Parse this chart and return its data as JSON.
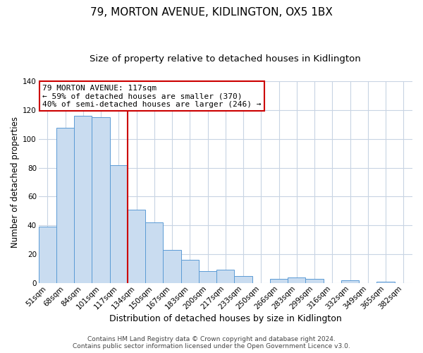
{
  "title": "79, MORTON AVENUE, KIDLINGTON, OX5 1BX",
  "subtitle": "Size of property relative to detached houses in Kidlington",
  "xlabel": "Distribution of detached houses by size in Kidlington",
  "ylabel": "Number of detached properties",
  "bar_labels": [
    "51sqm",
    "68sqm",
    "84sqm",
    "101sqm",
    "117sqm",
    "134sqm",
    "150sqm",
    "167sqm",
    "183sqm",
    "200sqm",
    "217sqm",
    "233sqm",
    "250sqm",
    "266sqm",
    "283sqm",
    "299sqm",
    "316sqm",
    "332sqm",
    "349sqm",
    "365sqm",
    "382sqm"
  ],
  "bar_values": [
    39,
    108,
    116,
    115,
    82,
    51,
    42,
    23,
    16,
    8,
    9,
    5,
    0,
    3,
    4,
    3,
    0,
    2,
    0,
    1,
    0
  ],
  "bar_color": "#c9dcf0",
  "bar_edge_color": "#5b9bd5",
  "vline_after_index": 4,
  "vline_color": "#cc0000",
  "ylim": [
    0,
    140
  ],
  "yticks": [
    0,
    20,
    40,
    60,
    80,
    100,
    120,
    140
  ],
  "annotation_title": "79 MORTON AVENUE: 117sqm",
  "annotation_line1": "← 59% of detached houses are smaller (370)",
  "annotation_line2": "40% of semi-detached houses are larger (246) →",
  "annotation_box_color": "#ffffff",
  "annotation_box_edge": "#cc0000",
  "footer1": "Contains HM Land Registry data © Crown copyright and database right 2024.",
  "footer2": "Contains public sector information licensed under the Open Government Licence v3.0.",
  "background_color": "#ffffff",
  "grid_color": "#c8d4e3",
  "title_fontsize": 11,
  "subtitle_fontsize": 9.5,
  "xlabel_fontsize": 9,
  "ylabel_fontsize": 8.5,
  "tick_fontsize": 7.5,
  "annotation_fontsize": 8,
  "footer_fontsize": 6.5
}
